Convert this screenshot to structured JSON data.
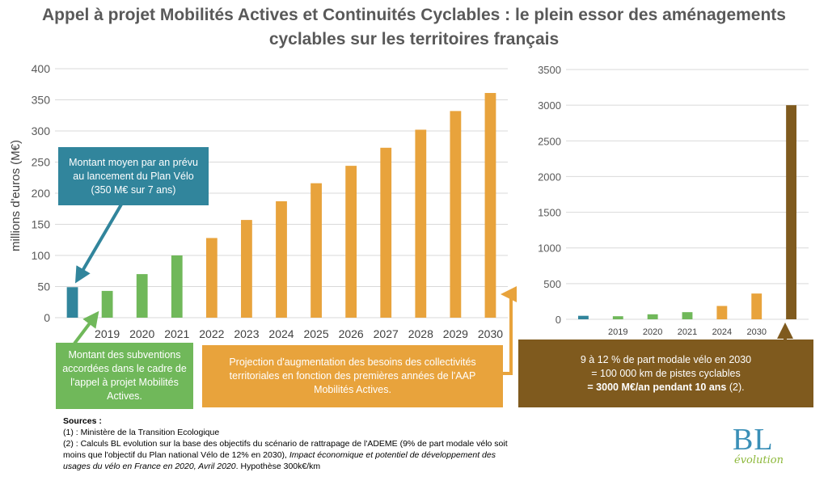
{
  "title_line1": "Appel à projet Mobilités Actives et Continuités Cyclables : le plein essor des aménagements",
  "title_line2": "cyclables sur les territoires français",
  "chart_data": [
    {
      "type": "bar",
      "ylabel": "millions d'euros (M€)",
      "ylim": [
        0,
        400
      ],
      "yticks": [
        0,
        50,
        100,
        150,
        200,
        250,
        300,
        350,
        400
      ],
      "grid": true,
      "categories": [
        "",
        "2019",
        "2020",
        "2021",
        "2022",
        "2023",
        "2024",
        "2025",
        "2026",
        "2027",
        "2028",
        "2029",
        "2030"
      ],
      "values": [
        49,
        43,
        70,
        100,
        128,
        157,
        187,
        216,
        244,
        273,
        302,
        332,
        361
      ],
      "colors": [
        "#31859c",
        "#70b85a",
        "#70b85a",
        "#70b85a",
        "#e8a33c",
        "#e8a33c",
        "#e8a33c",
        "#e8a33c",
        "#e8a33c",
        "#e8a33c",
        "#e8a33c",
        "#e8a33c",
        "#e8a33c"
      ]
    },
    {
      "type": "bar",
      "ylim": [
        0,
        3500
      ],
      "yticks": [
        0,
        500,
        1000,
        1500,
        2000,
        2500,
        3000,
        3500
      ],
      "grid": true,
      "categories": [
        "",
        "2019",
        "2020",
        "2021",
        "2024",
        "2030",
        ""
      ],
      "values": [
        49,
        43,
        70,
        100,
        187,
        361,
        3000
      ],
      "colors": [
        "#31859c",
        "#70b85a",
        "#70b85a",
        "#70b85a",
        "#e8a33c",
        "#e8a33c",
        "#7f5a1e"
      ]
    }
  ],
  "annotations": {
    "plan_velo": "Montant moyen par an prévu au lancement du Plan Vélo (350 M€ sur 7 ans)",
    "subventions": "Montant des subventions accordées dans le cadre de l'appel à projet Mobilités Actives.",
    "projection": "Projection d'augmentation des besoins des collectivités territoriales en fonction des premières années de l'AAP Mobilités Actives.",
    "objectif_line1": "9 à 12 % de part modale vélo en 2030",
    "objectif_line2": "=  100 000 km de pistes cyclables",
    "objectif_bold": "= 3000 M€/an pendant 10 ans",
    "objectif_ref": " (2)."
  },
  "colors": {
    "blue_box": "#31859c",
    "green_box": "#70b85a",
    "orange_box": "#e8a33c",
    "brown_box": "#7f5a1e"
  },
  "sources": {
    "heading": "Sources :",
    "s1": "(1) : Ministère de la Transition Ecologique",
    "s2_plain": "(2) : Calculs BL evolution sur la base des objectifs du scénario de rattrapage de l'ADEME (9% de part modale vélo soit moins que l'objectif du Plan national Vélo de 12% en 2030), ",
    "s2_italic": "Impact économique et potentiel de développement des usages du vélo en France en 2020, Avril 2020",
    "s2_end": ". Hypothèse 300k€/km"
  },
  "logo": {
    "main": "BL",
    "sub": "évolution"
  }
}
